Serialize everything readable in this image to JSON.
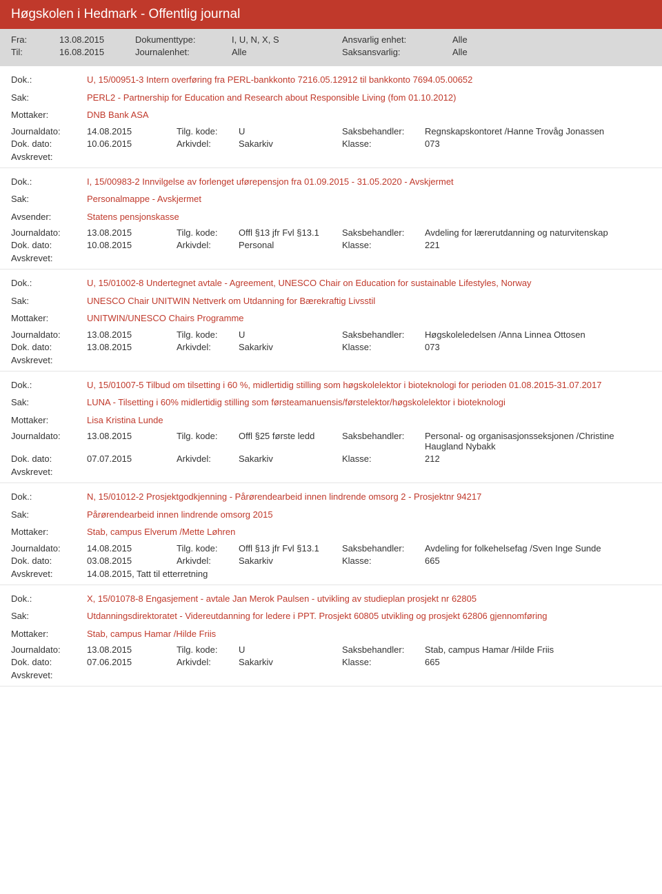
{
  "header": {
    "title": "Høgskolen i Hedmark - Offentlig journal"
  },
  "meta": {
    "fra_label": "Fra:",
    "fra": "13.08.2015",
    "til_label": "Til:",
    "til": "16.08.2015",
    "dokumenttype_label": "Dokumenttype:",
    "dokumenttype": "I, U, N, X, S",
    "journalenhet_label": "Journalenhet:",
    "journalenhet": "Alle",
    "ansvarlig_label": "Ansvarlig enhet:",
    "ansvarlig": "Alle",
    "saksansvarlig_label": "Saksansvarlig:",
    "saksansvarlig": "Alle"
  },
  "labels": {
    "dok": "Dok.:",
    "sak": "Sak:",
    "mottaker": "Mottaker:",
    "avsender": "Avsender:",
    "journaldato": "Journaldato:",
    "tilgkode": "Tilg. kode:",
    "saksbehandler": "Saksbehandler:",
    "dokdato": "Dok. dato:",
    "arkivdel": "Arkivdel:",
    "klasse": "Klasse:",
    "avskrevet": "Avskrevet:"
  },
  "entries": [
    {
      "dok": "U, 15/00951-3 Intern overføring fra PERL-bankkonto 7216.05.12912 til bankkonto 7694.05.00652",
      "sak": "PERL2 - Partnership for Education and Research about Responsible Living (fom 01.10.2012)",
      "party_label": "Mottaker:",
      "party": "DNB Bank ASA",
      "journaldato": "14.08.2015",
      "tilgkode": "U",
      "saksbehandler": "Regnskapskontoret /Hanne Trovåg Jonassen",
      "dokdato": "10.06.2015",
      "arkivdel": "Sakarkiv",
      "klasse": "073",
      "avskrevet": ""
    },
    {
      "dok": "I, 15/00983-2 Innvilgelse av forlenget uførepensjon fra 01.09.2015 - 31.05.2020 - Avskjermet",
      "sak": "Personalmappe - Avskjermet",
      "party_label": "Avsender:",
      "party": "Statens pensjonskasse",
      "journaldato": "13.08.2015",
      "tilgkode": "Offl §13 jfr Fvl §13.1",
      "saksbehandler": "Avdeling for lærerutdanning og naturvitenskap",
      "dokdato": "10.08.2015",
      "arkivdel": "Personal",
      "klasse": "221",
      "avskrevet": ""
    },
    {
      "dok": "U, 15/01002-8 Undertegnet avtale - Agreement, UNESCO Chair on Education for sustainable Lifestyles, Norway",
      "sak": "UNESCO Chair UNITWIN Nettverk om Utdanning for Bærekraftig Livsstil",
      "party_label": "Mottaker:",
      "party": "UNITWIN/UNESCO Chairs Programme",
      "journaldato": "13.08.2015",
      "tilgkode": "U",
      "saksbehandler": "Høgskoleledelsen /Anna Linnea Ottosen",
      "dokdato": "13.08.2015",
      "arkivdel": "Sakarkiv",
      "klasse": "073",
      "avskrevet": ""
    },
    {
      "dok": "U, 15/01007-5 Tilbud om tilsetting i 60 %, midlertidig stilling som høgskolelektor i bioteknologi for perioden 01.08.2015-31.07.2017",
      "sak": "LUNA - Tilsetting i 60% midlertidig stilling som førsteamanuensis/førstelektor/høgskolelektor i bioteknologi",
      "party_label": "Mottaker:",
      "party": "Lisa Kristina Lunde",
      "journaldato": "13.08.2015",
      "tilgkode": "Offl §25 første ledd",
      "saksbehandler": "Personal- og organisasjonsseksjonen /Christine Haugland Nybakk",
      "dokdato": "07.07.2015",
      "arkivdel": "Sakarkiv",
      "klasse": "212",
      "avskrevet": ""
    },
    {
      "dok": "N, 15/01012-2 Prosjektgodkjenning - Pårørendearbeid innen lindrende omsorg 2 - Prosjektnr 94217",
      "sak": "Pårørendearbeid innen lindrende omsorg 2015",
      "party_label": "Mottaker:",
      "party": "Stab, campus Elverum /Mette Løhren",
      "journaldato": "14.08.2015",
      "tilgkode": "Offl §13 jfr Fvl §13.1",
      "saksbehandler": "Avdeling for folkehelsefag /Sven Inge Sunde",
      "dokdato": "03.08.2015",
      "arkivdel": "Sakarkiv",
      "klasse": "665",
      "avskrevet": "14.08.2015, Tatt til etterretning"
    },
    {
      "dok": "X, 15/01078-8 Engasjement - avtale Jan Merok Paulsen - utvikling av studieplan prosjekt nr 62805",
      "sak": "Utdanningsdirektoratet - Videreutdanning for ledere i PPT. Prosjekt  60805 utvikling og prosjekt 62806 gjennomføring",
      "party_label": "Mottaker:",
      "party": "Stab, campus Hamar /Hilde Friis",
      "journaldato": "13.08.2015",
      "tilgkode": "U",
      "saksbehandler": "Stab, campus Hamar /Hilde Friis",
      "dokdato": "07.06.2015",
      "arkivdel": "Sakarkiv",
      "klasse": "665",
      "avskrevet": ""
    }
  ],
  "colors": {
    "header_bg": "#c0392b",
    "meta_bg": "#d9d9d9",
    "accent": "#c0392b",
    "text": "#333333",
    "border": "#e5e5e5"
  }
}
